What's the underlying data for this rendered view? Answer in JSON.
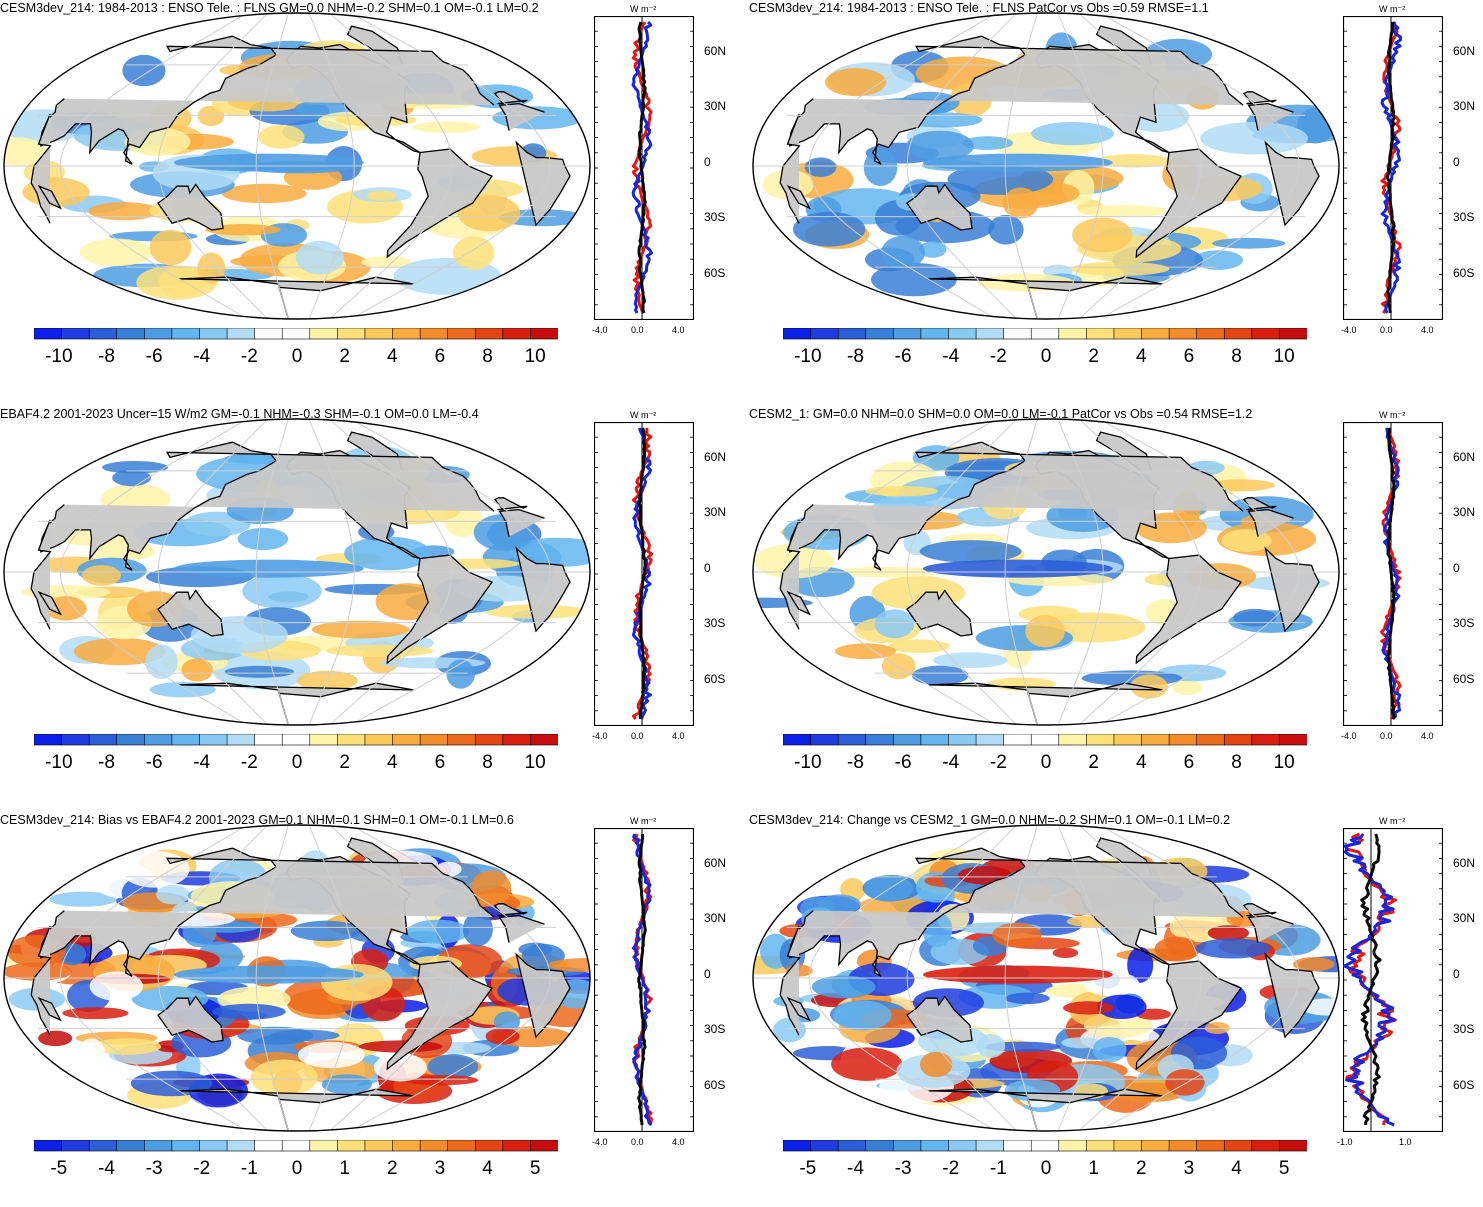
{
  "panels": [
    {
      "title": "CESM3dev_214: 1984-2013 : ENSO Tele. : FLNS GM=0.0 NHM=-0.2 SHM=0.1 OM=-0.1 LM=0.2",
      "colorbar_labels": [
        "-10",
        "-8",
        "-6",
        "-4",
        "-2",
        "0",
        "2",
        "4",
        "6",
        "8",
        "10"
      ],
      "profile_xticks": [
        "-4.0",
        "0.0",
        "4.0"
      ],
      "profile_units": "W m⁻²",
      "lat_labels": [
        "60N",
        "30N",
        "0",
        "30S",
        "60S"
      ]
    },
    {
      "title": "CESM3dev_214: 1984-2013 : ENSO Tele. : FLNS PatCor vs Obs =0.59 RMSE=1.1",
      "colorbar_labels": [
        "-10",
        "-8",
        "-6",
        "-4",
        "-2",
        "0",
        "2",
        "4",
        "6",
        "8",
        "10"
      ],
      "profile_xticks": [
        "-4.0",
        "0.0",
        "4.0"
      ],
      "profile_units": "W m⁻²",
      "lat_labels": [
        "60N",
        "30N",
        "0",
        "30S",
        "60S"
      ]
    },
    {
      "title": "EBAF4.2 2001-2023 Uncer=15 W/m2 GM=-0.1 NHM=-0.3 SHM=-0.1 OM=0.0 LM=-0.4",
      "colorbar_labels": [
        "-10",
        "-8",
        "-6",
        "-4",
        "-2",
        "0",
        "2",
        "4",
        "6",
        "8",
        "10"
      ],
      "profile_xticks": [
        "-4.0",
        "0.0",
        "4.0"
      ],
      "profile_units": "W m⁻²",
      "lat_labels": [
        "60N",
        "30N",
        "0",
        "30S",
        "60S"
      ]
    },
    {
      "title": "CESM2_1: GM=0.0 NHM=0.0 SHM=0.0 OM=0.0 LM=-0.1 PatCor vs Obs =0.54 RMSE=1.2",
      "colorbar_labels": [
        "-10",
        "-8",
        "-6",
        "-4",
        "-2",
        "0",
        "2",
        "4",
        "6",
        "8",
        "10"
      ],
      "profile_xticks": [
        "-4.0",
        "0.0",
        "4.0"
      ],
      "profile_units": "W m⁻²",
      "lat_labels": [
        "60N",
        "30N",
        "0",
        "30S",
        "60S"
      ]
    },
    {
      "title": "CESM3dev_214: Bias vs EBAF4.2 2001-2023 GM=0.1 NHM=0.1 SHM=0.1 OM=-0.1 LM=0.6",
      "colorbar_labels": [
        "-5",
        "-4",
        "-3",
        "-2",
        "-1",
        "0",
        "1",
        "2",
        "3",
        "4",
        "5"
      ],
      "profile_xticks": [
        "-4.0",
        "0.0",
        "4.0"
      ],
      "profile_units": "W m⁻²",
      "lat_labels": [
        "60N",
        "30N",
        "0",
        "30S",
        "60S"
      ]
    },
    {
      "title": "CESM3dev_214: Change vs CESM2_1 GM=0.0 NHM=-0.2 SHM=0.1 OM=-0.1 LM=0.2",
      "colorbar_labels": [
        "-5",
        "-4",
        "-3",
        "-2",
        "-1",
        "0",
        "1",
        "2",
        "3",
        "4",
        "5"
      ],
      "profile_xticks": [
        "-1.0",
        "1.0"
      ],
      "profile_units": "W m⁻²",
      "lat_labels": [
        "60N",
        "30N",
        "0",
        "30S",
        "60S"
      ]
    }
  ],
  "colors": {
    "land": "#c8c8c8",
    "ocean": "#ffffff",
    "grid": "#cfcfcf",
    "zonal_model": "#0a0a0a",
    "zonal_obs": "#e8160c",
    "zonal_other": "#1427e0",
    "palette": [
      "#0b1fe6",
      "#1f3ce0",
      "#2c5ed8",
      "#3a7fd6",
      "#4e9de3",
      "#63b5ef",
      "#89caf3",
      "#b2dcf5",
      "#ffffff",
      "#ffffff",
      "#fff3a8",
      "#fde07a",
      "#fbc95a",
      "#f8ac3e",
      "#f28c2a",
      "#ec6a1c",
      "#e44515",
      "#d91f10",
      "#c70d0d"
    ]
  }
}
